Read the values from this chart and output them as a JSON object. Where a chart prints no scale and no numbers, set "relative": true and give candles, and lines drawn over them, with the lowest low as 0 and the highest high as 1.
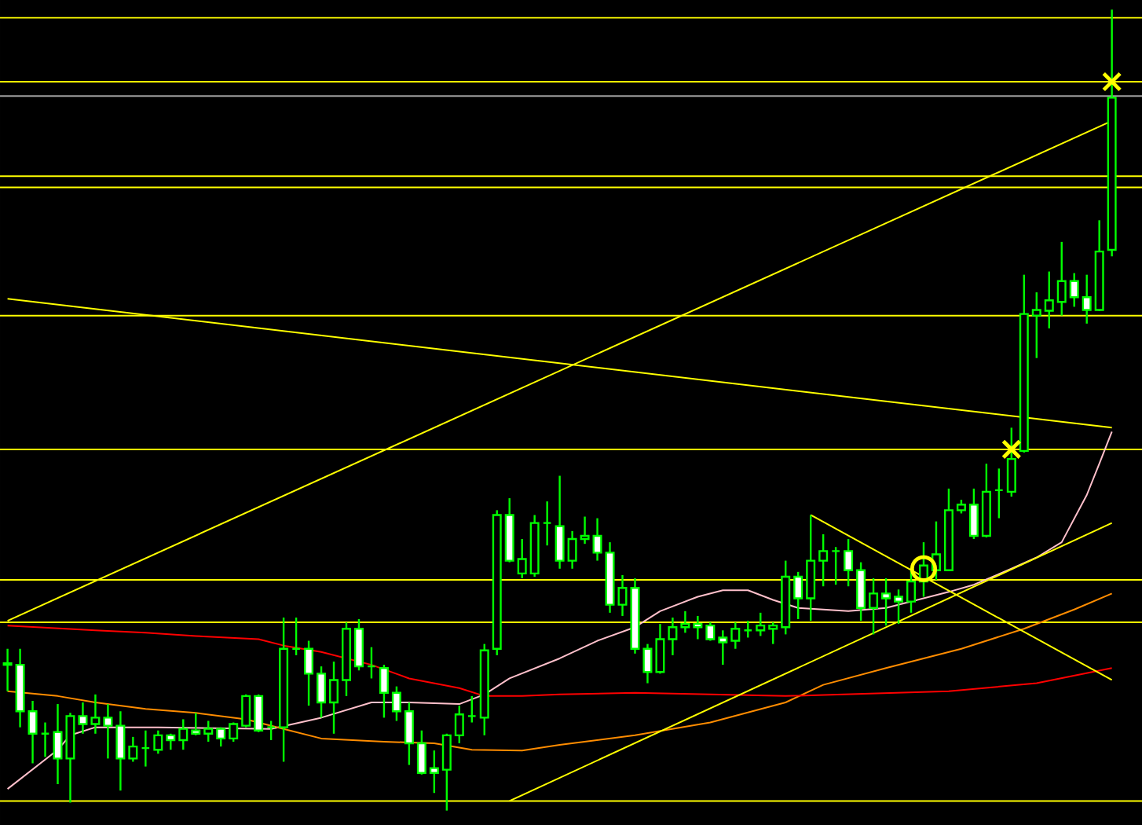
{
  "chart_data": {
    "type": "candlestick",
    "relative": true,
    "color": "#00ff00",
    "categories": [
      null,
      null,
      null,
      null,
      null,
      null,
      null,
      null,
      null,
      null,
      null,
      null,
      null,
      null,
      null,
      null,
      null,
      null,
      null,
      null,
      null,
      null,
      null,
      null,
      null,
      null,
      null,
      null,
      null,
      null,
      null,
      null,
      null,
      null,
      null,
      null,
      null,
      null,
      null,
      null,
      null,
      null,
      null,
      null,
      null,
      null,
      null,
      null,
      null,
      null,
      null,
      null,
      null,
      null,
      null,
      null,
      null,
      null,
      null,
      null,
      null,
      null,
      null,
      null,
      null,
      null,
      null,
      null,
      null,
      null,
      null,
      null,
      null,
      null,
      null,
      null,
      null,
      null,
      null,
      null,
      null,
      null,
      null,
      null,
      null,
      null,
      null,
      null,
      null
    ],
    "ohlc": [
      [
        0.182,
        0.202,
        0.149,
        0.184
      ],
      [
        0.182,
        0.202,
        0.104,
        0.124
      ],
      [
        0.124,
        0.137,
        0.059,
        0.096
      ],
      [
        0.096,
        0.11,
        0.067,
        0.096
      ],
      [
        0.098,
        0.133,
        0.033,
        0.065
      ],
      [
        0.065,
        0.122,
        0.01,
        0.118
      ],
      [
        0.118,
        0.135,
        0.096,
        0.108
      ],
      [
        0.108,
        0.145,
        0.096,
        0.116
      ],
      [
        0.116,
        0.133,
        0.065,
        0.106
      ],
      [
        0.106,
        0.124,
        0.025,
        0.065
      ],
      [
        0.065,
        0.092,
        0.061,
        0.08
      ],
      [
        0.078,
        0.1,
        0.055,
        0.078
      ],
      [
        0.076,
        0.1,
        0.071,
        0.094
      ],
      [
        0.094,
        0.096,
        0.076,
        0.088
      ],
      [
        0.088,
        0.114,
        0.076,
        0.102
      ],
      [
        0.1,
        0.122,
        0.094,
        0.096
      ],
      [
        0.096,
        0.112,
        0.086,
        0.102
      ],
      [
        0.102,
        0.104,
        0.08,
        0.09
      ],
      [
        0.09,
        0.11,
        0.086,
        0.108
      ],
      [
        0.106,
        0.145,
        0.104,
        0.143
      ],
      [
        0.143,
        0.145,
        0.098,
        0.1
      ],
      [
        0.104,
        0.112,
        0.088,
        0.104
      ],
      [
        0.104,
        0.241,
        0.061,
        0.202
      ],
      [
        0.202,
        0.241,
        0.194,
        0.202
      ],
      [
        0.202,
        0.212,
        0.131,
        0.171
      ],
      [
        0.171,
        0.18,
        0.116,
        0.135
      ],
      [
        0.135,
        0.186,
        0.096,
        0.163
      ],
      [
        0.163,
        0.235,
        0.143,
        0.227
      ],
      [
        0.227,
        0.239,
        0.175,
        0.18
      ],
      [
        0.18,
        0.204,
        0.165,
        0.18
      ],
      [
        0.178,
        0.182,
        0.116,
        0.147
      ],
      [
        0.147,
        0.155,
        0.112,
        0.124
      ],
      [
        0.124,
        0.135,
        0.057,
        0.084
      ],
      [
        0.084,
        0.1,
        0.045,
        0.047
      ],
      [
        0.053,
        0.075,
        0.022,
        0.047
      ],
      [
        0.051,
        0.096,
        0,
        0.094
      ],
      [
        0.094,
        0.131,
        0.084,
        0.12
      ],
      [
        0.118,
        0.143,
        0.11,
        0.118
      ],
      [
        0.116,
        0.208,
        0.094,
        0.2
      ],
      [
        0.202,
        0.375,
        0.194,
        0.369
      ],
      [
        0.369,
        0.39,
        0.31,
        0.312
      ],
      [
        0.296,
        0.339,
        0.29,
        0.314
      ],
      [
        0.296,
        0.369,
        0.292,
        0.359
      ],
      [
        0.359,
        0.386,
        0.331,
        0.359
      ],
      [
        0.355,
        0.418,
        0.302,
        0.312
      ],
      [
        0.312,
        0.349,
        0.302,
        0.339
      ],
      [
        0.339,
        0.367,
        0.333,
        0.343
      ],
      [
        0.343,
        0.365,
        0.312,
        0.322
      ],
      [
        0.322,
        0.335,
        0.247,
        0.257
      ],
      [
        0.257,
        0.294,
        0.243,
        0.278
      ],
      [
        0.278,
        0.29,
        0.196,
        0.202
      ],
      [
        0.202,
        0.208,
        0.159,
        0.173
      ],
      [
        0.173,
        0.233,
        0.171,
        0.214
      ],
      [
        0.214,
        0.241,
        0.194,
        0.229
      ],
      [
        0.229,
        0.249,
        0.222,
        0.233
      ],
      [
        0.233,
        0.243,
        0.214,
        0.229
      ],
      [
        0.231,
        0.235,
        0.212,
        0.214
      ],
      [
        0.216,
        0.225,
        0.182,
        0.21
      ],
      [
        0.212,
        0.235,
        0.202,
        0.227
      ],
      [
        0.225,
        0.237,
        0.216,
        0.225
      ],
      [
        0.225,
        0.247,
        0.218,
        0.231
      ],
      [
        0.227,
        0.235,
        0.208,
        0.231
      ],
      [
        0.229,
        0.312,
        0.22,
        0.292
      ],
      [
        0.292,
        0.298,
        0.239,
        0.265
      ],
      [
        0.265,
        0.369,
        0.237,
        0.312
      ],
      [
        0.312,
        0.345,
        0.28,
        0.324
      ],
      [
        0.324,
        0.329,
        0.282,
        0.324
      ],
      [
        0.324,
        0.339,
        0.28,
        0.3
      ],
      [
        0.3,
        0.31,
        0.237,
        0.253
      ],
      [
        0.253,
        0.29,
        0.22,
        0.271
      ],
      [
        0.271,
        0.29,
        0.231,
        0.265
      ],
      [
        0.267,
        0.276,
        0.233,
        0.261
      ],
      [
        0.261,
        0.3,
        0.247,
        0.286
      ],
      [
        0.286,
        0.335,
        0.267,
        0.306
      ],
      [
        0.3,
        0.361,
        0.288,
        0.32
      ],
      [
        0.3,
        0.402,
        0.3,
        0.375
      ],
      [
        0.375,
        0.388,
        0.371,
        0.382
      ],
      [
        0.382,
        0.402,
        0.339,
        0.343
      ],
      [
        0.343,
        0.433,
        0.341,
        0.398
      ],
      [
        0.4,
        0.427,
        0.365,
        0.4
      ],
      [
        0.398,
        0.478,
        0.392,
        0.439
      ],
      [
        0.449,
        0.669,
        0.447,
        0.62
      ],
      [
        0.618,
        0.647,
        0.565,
        0.625
      ],
      [
        0.624,
        0.673,
        0.602,
        0.637
      ],
      [
        0.635,
        0.71,
        0.618,
        0.661
      ],
      [
        0.661,
        0.671,
        0.629,
        0.641
      ],
      [
        0.641,
        0.669,
        0.608,
        0.625
      ],
      [
        0.625,
        0.737,
        0.624,
        0.698
      ],
      [
        0.7,
        1,
        0.692,
        0.89
      ]
    ],
    "series": [
      {
        "type": "line",
        "color": "#ffc0cb",
        "values": [
          0.027,
          null,
          null,
          null,
          0.076,
          0.094,
          null,
          0.104,
          null,
          null,
          null,
          null,
          0.104,
          null,
          null,
          null,
          null,
          null,
          null,
          null,
          null,
          0.102,
          null,
          null,
          null,
          0.116,
          null,
          null,
          null,
          0.135,
          null,
          null,
          0.135,
          null,
          null,
          null,
          0.133,
          null,
          0.145,
          null,
          0.165,
          null,
          null,
          null,
          0.19,
          null,
          null,
          0.212,
          null,
          null,
          0.229,
          null,
          0.249,
          null,
          null,
          0.267,
          null,
          0.275,
          null,
          0.275,
          null,
          0.263,
          null,
          0.253,
          null,
          null,
          null,
          0.249,
          null,
          null,
          0.253,
          null,
          0.261,
          null,
          null,
          0.273,
          null,
          0.282,
          null,
          null,
          0.302,
          null,
          0.316,
          null,
          0.335,
          null,
          0.394,
          0.433,
          0.473
        ]
      },
      {
        "type": "line",
        "color": "#ff8c00",
        "values": [
          0.149,
          null,
          null,
          null,
          0.143,
          null,
          null,
          0.135,
          null,
          null,
          null,
          0.127,
          null,
          null,
          null,
          0.122,
          null,
          null,
          null,
          0.114,
          null,
          null,
          0.102,
          null,
          null,
          0.09,
          null,
          null,
          null,
          null,
          0.086,
          null,
          null,
          null,
          0.084,
          null,
          null,
          0.076,
          null,
          null,
          null,
          0.075,
          null,
          null,
          0.082,
          null,
          null,
          null,
          null,
          null,
          0.094,
          null,
          null,
          null,
          null,
          null,
          0.11,
          null,
          null,
          null,
          null,
          null,
          0.135,
          null,
          null,
          0.157,
          null,
          null,
          null,
          null,
          0.178,
          null,
          null,
          null,
          null,
          null,
          0.202,
          null,
          null,
          null,
          null,
          0.227,
          null,
          null,
          null,
          0.251,
          null,
          null,
          0.271
        ]
      },
      {
        "type": "line",
        "color": "#ff0000",
        "values": [
          0.231,
          null,
          null,
          null,
          null,
          null,
          null,
          0.225,
          null,
          null,
          null,
          0.222,
          null,
          null,
          null,
          0.218,
          null,
          null,
          null,
          null,
          0.214,
          null,
          0.206,
          null,
          null,
          0.198,
          null,
          null,
          null,
          0.182,
          null,
          null,
          0.165,
          null,
          null,
          null,
          0.153,
          null,
          0.143,
          null,
          null,
          0.143,
          null,
          null,
          0.145,
          null,
          null,
          null,
          null,
          null,
          0.147,
          null,
          null,
          null,
          null,
          null,
          null,
          null,
          null,
          null,
          null,
          null,
          0.143,
          null,
          null,
          null,
          null,
          null,
          null,
          null,
          null,
          null,
          null,
          null,
          null,
          0.149,
          null,
          null,
          null,
          null,
          null,
          null,
          0.159,
          null,
          null,
          null,
          null,
          null,
          0.178
        ]
      },
      {
        "type": "line",
        "color": "#ffff00",
        "values": [
          0.237,
          null,
          null,
          null,
          null,
          null,
          null,
          null,
          null,
          null,
          null,
          null,
          null,
          null,
          null,
          null,
          null,
          null,
          null,
          null,
          null,
          null,
          null,
          null,
          null,
          null,
          null,
          null,
          null,
          null,
          null,
          null,
          null,
          null,
          null,
          null,
          null,
          null,
          null,
          null,
          null,
          null,
          null,
          null,
          null,
          null,
          null,
          null,
          null,
          null,
          null,
          null,
          null,
          null,
          null,
          null,
          null,
          null,
          null,
          null,
          null,
          null,
          null,
          null,
          null,
          null,
          null,
          null,
          null,
          null,
          null,
          null,
          null,
          null,
          null,
          null,
          null,
          null,
          null,
          null,
          null,
          null,
          null,
          null,
          null,
          null,
          null,
          null,
          0.861
        ]
      },
      {
        "type": "line",
        "color": "#ffff00",
        "values": [
          0.639,
          null,
          null,
          null,
          null,
          null,
          null,
          null,
          null,
          null,
          null,
          null,
          null,
          null,
          null,
          null,
          null,
          null,
          null,
          null,
          null,
          null,
          null,
          null,
          null,
          null,
          null,
          null,
          null,
          null,
          null,
          null,
          null,
          null,
          null,
          null,
          null,
          null,
          null,
          null,
          null,
          null,
          null,
          null,
          null,
          null,
          null,
          null,
          null,
          null,
          null,
          null,
          null,
          null,
          null,
          null,
          null,
          null,
          null,
          null,
          null,
          null,
          null,
          null,
          null,
          null,
          null,
          null,
          null,
          null,
          null,
          null,
          null,
          null,
          null,
          null,
          null,
          null,
          null,
          null,
          null,
          null,
          null,
          null,
          null,
          null,
          null,
          null,
          0.478
        ]
      },
      {
        "type": "line",
        "color": "#ffff00",
        "values": [
          null,
          null,
          null,
          null,
          null,
          null,
          null,
          null,
          null,
          null,
          null,
          null,
          null,
          null,
          null,
          null,
          null,
          null,
          null,
          null,
          null,
          null,
          null,
          null,
          null,
          null,
          null,
          null,
          null,
          null,
          null,
          null,
          null,
          null,
          null,
          null,
          null,
          null,
          null,
          null,
          0.012,
          null,
          null,
          null,
          null,
          null,
          null,
          null,
          null,
          null,
          null,
          null,
          null,
          null,
          null,
          null,
          null,
          null,
          null,
          null,
          null,
          null,
          null,
          null,
          null,
          null,
          null,
          null,
          null,
          null,
          null,
          null,
          null,
          null,
          null,
          null,
          null,
          null,
          null,
          null,
          null,
          null,
          null,
          null,
          null,
          null,
          null,
          null,
          0.359
        ]
      },
      {
        "type": "line",
        "color": "#ffff00",
        "values": [
          null,
          null,
          null,
          null,
          null,
          null,
          null,
          null,
          null,
          null,
          null,
          null,
          null,
          null,
          null,
          null,
          null,
          null,
          null,
          null,
          null,
          null,
          null,
          null,
          null,
          null,
          null,
          null,
          null,
          null,
          null,
          null,
          null,
          null,
          null,
          null,
          null,
          null,
          null,
          null,
          null,
          null,
          null,
          null,
          null,
          null,
          null,
          null,
          null,
          null,
          null,
          null,
          null,
          null,
          null,
          null,
          null,
          null,
          null,
          null,
          null,
          null,
          null,
          null,
          0.369,
          null,
          null,
          null,
          null,
          null,
          null,
          null,
          null,
          null,
          null,
          null,
          null,
          null,
          null,
          null,
          null,
          null,
          null,
          null,
          null,
          null,
          null,
          null,
          0.163
        ]
      },
      {
        "type": "scatter",
        "color": "#ffff00",
        "marker": "cross",
        "values": [
          null,
          null,
          null,
          null,
          null,
          null,
          null,
          null,
          null,
          null,
          null,
          null,
          null,
          null,
          null,
          null,
          null,
          null,
          null,
          null,
          null,
          null,
          null,
          null,
          null,
          null,
          null,
          null,
          null,
          null,
          null,
          null,
          null,
          null,
          null,
          null,
          null,
          null,
          null,
          null,
          null,
          null,
          null,
          null,
          null,
          null,
          null,
          null,
          null,
          null,
          null,
          null,
          null,
          null,
          null,
          null,
          null,
          null,
          null,
          null,
          null,
          null,
          null,
          null,
          null,
          null,
          null,
          null,
          null,
          null,
          null,
          null,
          null,
          null,
          null,
          null,
          null,
          null,
          null,
          null,
          0.451,
          null,
          null,
          null,
          null,
          null,
          null,
          null,
          0.91
        ]
      },
      {
        "type": "scatter",
        "color": "#ffff00",
        "marker": "circle",
        "values": [
          null,
          null,
          null,
          null,
          null,
          null,
          null,
          null,
          null,
          null,
          null,
          null,
          null,
          null,
          null,
          null,
          null,
          null,
          null,
          null,
          null,
          null,
          null,
          null,
          null,
          null,
          null,
          null,
          null,
          null,
          null,
          null,
          null,
          null,
          null,
          null,
          null,
          null,
          null,
          null,
          null,
          null,
          null,
          null,
          null,
          null,
          null,
          null,
          null,
          null,
          null,
          null,
          null,
          null,
          null,
          null,
          null,
          null,
          null,
          null,
          null,
          null,
          null,
          null,
          null,
          null,
          null,
          null,
          null,
          null,
          null,
          null,
          null,
          0.302,
          null,
          null,
          null,
          null,
          null,
          null,
          null,
          null,
          null,
          null,
          null,
          null,
          null,
          null,
          null
        ]
      }
    ],
    "ref_lines": [
      {
        "axis": "y",
        "value": 0.99,
        "color": "#ffff00"
      },
      {
        "axis": "y",
        "value": 0.91,
        "color": "#ffff00"
      },
      {
        "axis": "y",
        "value": 0.892,
        "color": "#a0a0a0"
      },
      {
        "axis": "y",
        "value": 0.792,
        "color": "#ffff00"
      },
      {
        "axis": "y",
        "value": 0.778,
        "color": "#ffff00"
      },
      {
        "axis": "y",
        "value": 0.618,
        "color": "#ffff00"
      },
      {
        "axis": "y",
        "value": 0.451,
        "color": "#ffff00"
      },
      {
        "axis": "y",
        "value": 0.288,
        "color": "#ffff00"
      },
      {
        "axis": "y",
        "value": 0.235,
        "color": "#ffff00"
      },
      {
        "axis": "y",
        "value": 0.012,
        "color": "#ffff00"
      }
    ]
  }
}
